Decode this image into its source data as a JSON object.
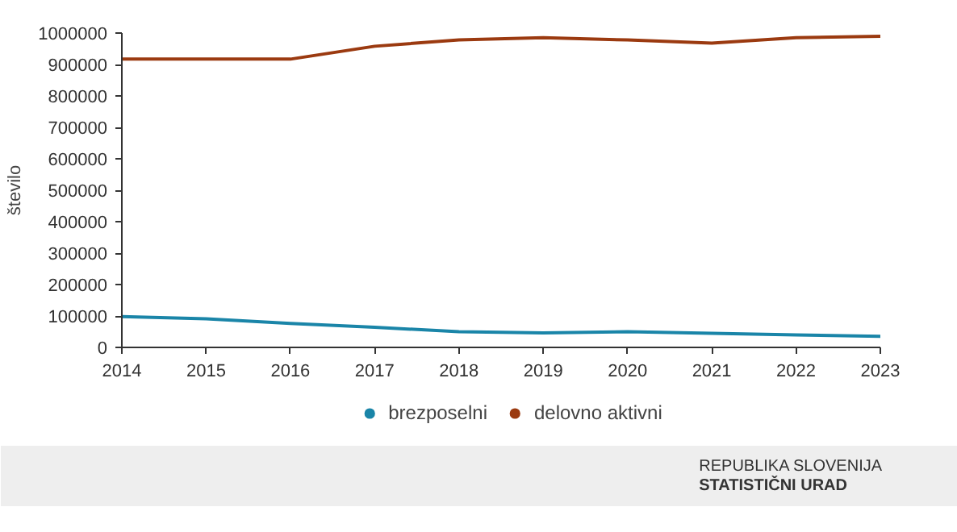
{
  "chart_data": {
    "type": "line",
    "ylabel": "število",
    "x": [
      2014,
      2015,
      2016,
      2017,
      2018,
      2019,
      2020,
      2021,
      2022,
      2023
    ],
    "series": [
      {
        "name": "brezposelni",
        "color": "#1a85a8",
        "values": [
          98000,
          91000,
          76000,
          64000,
          50000,
          46000,
          50000,
          45000,
          40000,
          35000
        ]
      },
      {
        "name": "delovno aktivni",
        "color": "#9b3a10",
        "values": [
          917000,
          917000,
          917000,
          958000,
          978000,
          985000,
          978000,
          968000,
          985000,
          990000
        ]
      }
    ],
    "xlim": [
      2014,
      2023
    ],
    "xticks": [
      2014,
      2015,
      2016,
      2017,
      2018,
      2019,
      2020,
      2021,
      2022,
      2023
    ],
    "ylim": [
      0,
      1000000
    ],
    "yticks": [
      0,
      100000,
      200000,
      300000,
      400000,
      500000,
      600000,
      700000,
      800000,
      900000,
      1000000
    ],
    "grid": false,
    "legend": "bottom",
    "marker": "none",
    "line_style": "solid",
    "annotations": [
      "REPUBLIKA SLOVENIJA",
      "STATISTIČNI URAD"
    ]
  }
}
